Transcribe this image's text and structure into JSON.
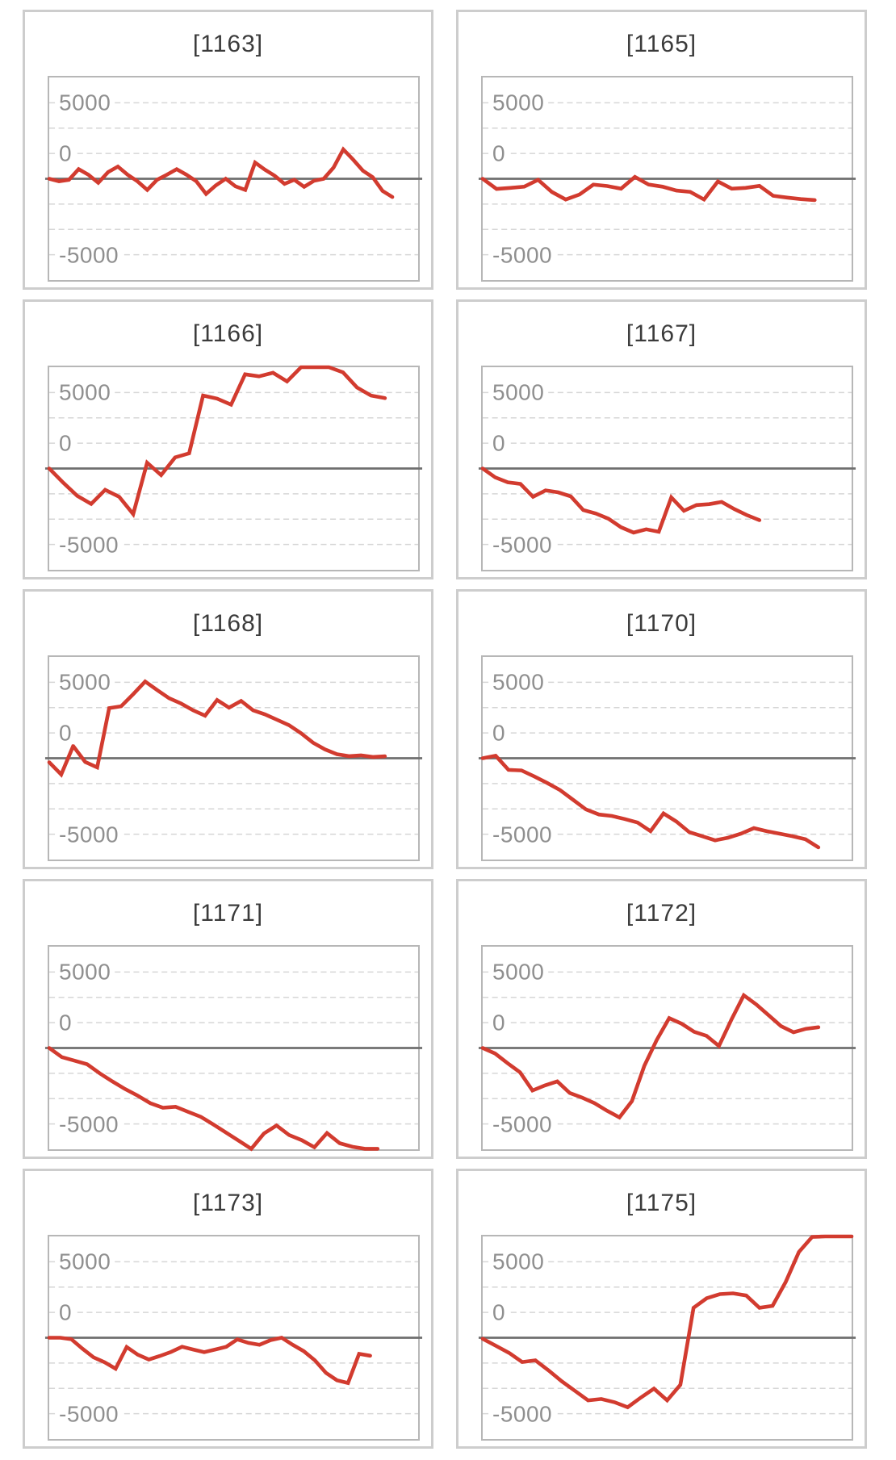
{
  "style": {
    "page_background": "#ffffff",
    "panel_border_color": "#cdcdcd",
    "plot_border_color": "#b7b7b7",
    "gridline_color": "#d6d6d6",
    "zero_line_color": "#6f6f6f",
    "line_color": "#d23b2f",
    "title_color": "#3b3b3b",
    "tick_label_color": "#8f8f8f"
  },
  "chart_data": [
    {
      "type": "line",
      "title": "[1163]",
      "y_tick_labels": [
        "5000",
        "0",
        "-5000"
      ],
      "ylim": [
        -10000,
        10000
      ],
      "gridline_step": 2500,
      "grid": "dashed-horizontal",
      "legend": "none",
      "end_frac": 0.93,
      "values": [
        0,
        -250,
        -100,
        950,
        400,
        -400,
        650,
        1200,
        400,
        -250,
        -1100,
        -100,
        400,
        950,
        400,
        -250,
        -1500,
        -650,
        0,
        -750,
        -1100,
        1600,
        900,
        300,
        -500,
        -100,
        -800,
        -200,
        0,
        1100,
        2900,
        1900,
        800,
        150,
        -1200,
        -1800
      ]
    },
    {
      "type": "line",
      "title": "[1165]",
      "y_tick_labels": [
        "5000",
        "0",
        "-5000"
      ],
      "ylim": [
        -10000,
        10000
      ],
      "gridline_step": 2500,
      "grid": "dashed-horizontal",
      "legend": "none",
      "end_frac": 0.9,
      "values": [
        0,
        -1000,
        -900,
        -780,
        -100,
        -1300,
        -2050,
        -1550,
        -570,
        -720,
        -980,
        180,
        -570,
        -780,
        -1160,
        -1290,
        -2050,
        -260,
        -980,
        -900,
        -700,
        -1680,
        -1860,
        -2010,
        -2100
      ]
    },
    {
      "type": "line",
      "title": "[1166]",
      "y_tick_labels": [
        "5000",
        "0",
        "-5000"
      ],
      "ylim": [
        -10000,
        10000
      ],
      "gridline_step": 2500,
      "grid": "dashed-horizontal",
      "legend": "none",
      "end_frac": 0.91,
      "values": [
        0,
        -1400,
        -2700,
        -3500,
        -2100,
        -2800,
        -4500,
        570,
        -650,
        1100,
        1500,
        7200,
        6900,
        6300,
        9300,
        9100,
        9450,
        8600,
        10000,
        10000,
        10000,
        9500,
        8000,
        7200,
        6950
      ]
    },
    {
      "type": "line",
      "title": "[1167]",
      "y_tick_labels": [
        "5000",
        "0",
        "-5000"
      ],
      "ylim": [
        -10000,
        10000
      ],
      "gridline_step": 2500,
      "grid": "dashed-horizontal",
      "legend": "none",
      "end_frac": 0.75,
      "values": [
        0,
        -880,
        -1360,
        -1520,
        -2800,
        -2160,
        -2350,
        -2750,
        -4100,
        -4450,
        -4960,
        -5800,
        -6330,
        -6000,
        -6250,
        -2850,
        -4170,
        -3610,
        -3520,
        -3300,
        -4000,
        -4600,
        -5100
      ]
    },
    {
      "type": "line",
      "title": "[1168]",
      "y_tick_labels": [
        "5000",
        "0",
        "-5000"
      ],
      "ylim": [
        -10000,
        10000
      ],
      "gridline_step": 2500,
      "grid": "dashed-horizontal",
      "legend": "none",
      "end_frac": 0.91,
      "values": [
        -400,
        -1600,
        1200,
        -370,
        -900,
        4950,
        5130,
        6330,
        7580,
        6730,
        5930,
        5400,
        4730,
        4200,
        5750,
        5000,
        5660,
        4730,
        4330,
        3800,
        3270,
        2470,
        1540,
        880,
        400,
        210,
        290,
        130,
        190
      ]
    },
    {
      "type": "line",
      "title": "[1170]",
      "y_tick_labels": [
        "5000",
        "0",
        "-5000"
      ],
      "ylim": [
        -10000,
        10000
      ],
      "gridline_step": 2500,
      "grid": "dashed-horizontal",
      "legend": "none",
      "end_frac": 0.91,
      "values": [
        0,
        250,
        -1150,
        -1200,
        -1800,
        -2450,
        -3150,
        -4100,
        -5050,
        -5550,
        -5700,
        -6000,
        -6350,
        -7200,
        -5450,
        -6250,
        -7300,
        -7700,
        -8100,
        -7850,
        -7450,
        -6900,
        -7200,
        -7450,
        -7700,
        -8000,
        -8800
      ]
    },
    {
      "type": "line",
      "title": "[1171]",
      "y_tick_labels": [
        "5000",
        "0",
        "-5000"
      ],
      "ylim": [
        -10000,
        10000
      ],
      "gridline_step": 2500,
      "grid": "dashed-horizontal",
      "legend": "none",
      "end_frac": 0.89,
      "values": [
        0,
        -900,
        -1250,
        -1600,
        -2500,
        -3300,
        -4050,
        -4700,
        -5450,
        -5900,
        -5800,
        -6300,
        -6800,
        -7550,
        -8350,
        -9150,
        -9950,
        -8450,
        -7650,
        -8600,
        -9100,
        -9800,
        -8400,
        -9400,
        -9750,
        -9950,
        -9950
      ]
    },
    {
      "type": "line",
      "title": "[1172]",
      "y_tick_labels": [
        "5000",
        "0",
        "-5000"
      ],
      "ylim": [
        -10000,
        10000
      ],
      "gridline_step": 2500,
      "grid": "dashed-horizontal",
      "legend": "none",
      "end_frac": 0.91,
      "values": [
        0,
        -550,
        -1500,
        -2400,
        -4200,
        -3700,
        -3300,
        -4450,
        -4900,
        -5450,
        -6200,
        -6850,
        -5250,
        -1750,
        800,
        2950,
        2400,
        1600,
        1200,
        200,
        2800,
        5200,
        4300,
        3230,
        2150,
        1550,
        1900,
        2050
      ]
    },
    {
      "type": "line",
      "title": "[1173]",
      "y_tick_labels": [
        "5000",
        "0",
        "-5000"
      ],
      "ylim": [
        -10000,
        10000
      ],
      "gridline_step": 2500,
      "grid": "dashed-horizontal",
      "legend": "none",
      "end_frac": 0.87,
      "values": [
        0,
        0,
        -150,
        -1080,
        -1940,
        -2420,
        -3060,
        -920,
        -1670,
        -2150,
        -1800,
        -1400,
        -890,
        -1160,
        -1430,
        -1160,
        -890,
        -160,
        -510,
        -700,
        -240,
        0,
        -700,
        -1330,
        -2230,
        -3470,
        -4200,
        -4470,
        -1590,
        -1780
      ]
    },
    {
      "type": "line",
      "title": "[1175]",
      "y_tick_labels": [
        "5000",
        "0",
        "-5000"
      ],
      "ylim": [
        -10000,
        10000
      ],
      "gridline_step": 2500,
      "grid": "dashed-horizontal",
      "legend": "none",
      "end_frac": 1.0,
      "values": [
        -100,
        -800,
        -1500,
        -2400,
        -2230,
        -3230,
        -4300,
        -5240,
        -6180,
        -6050,
        -6370,
        -6860,
        -5910,
        -5030,
        -6180,
        -4650,
        2960,
        3900,
        4300,
        4380,
        4170,
        2960,
        3150,
        5510,
        8470,
        9950,
        10000,
        10000,
        10000
      ]
    }
  ]
}
